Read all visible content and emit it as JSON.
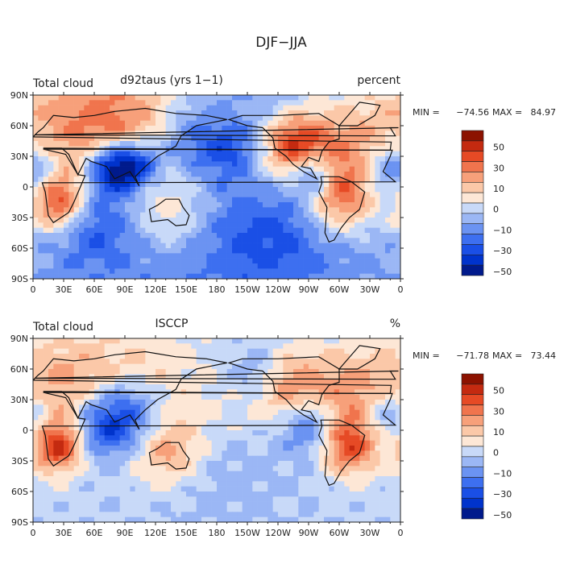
{
  "figure_title": "DJF−JJA",
  "chart_data": [
    {
      "type": "heatmap",
      "id": "top",
      "left_title": "Total cloud",
      "center_title": "d92taus (yrs 1−1)",
      "units": "percent",
      "stats": {
        "min_label": "MIN = ",
        "min": "−74.56",
        "max_label": "MAX = ",
        "max": "84.97"
      },
      "xlabel": "",
      "ylabel": "",
      "x_ticks": [
        "0",
        "30E",
        "60E",
        "90E",
        "120E",
        "150E",
        "180",
        "150W",
        "120W",
        "90W",
        "60W",
        "30W",
        "0"
      ],
      "y_ticks": [
        "90N",
        "60N",
        "30N",
        "0",
        "30S",
        "60S",
        "90S"
      ],
      "xlim": [
        0,
        360
      ],
      "ylim": [
        -90,
        90
      ],
      "colorbar": {
        "labels": [
          "50",
          "30",
          "10",
          "0",
          "−10",
          "−30",
          "−50"
        ]
      },
      "field": [
        {
          "lon": 40,
          "lat": 55,
          "r": 55,
          "v": 35
        },
        {
          "lon": 100,
          "lat": 55,
          "r": 45,
          "v": 35
        },
        {
          "lon": 255,
          "lat": 40,
          "r": 22,
          "v": 55
        },
        {
          "lon": 300,
          "lat": 40,
          "r": 35,
          "v": 35
        },
        {
          "lon": 25,
          "lat": -15,
          "r": 20,
          "v": 60
        },
        {
          "lon": 300,
          "lat": -10,
          "r": 25,
          "v": 50
        },
        {
          "lon": 135,
          "lat": -25,
          "r": 30,
          "v": 25
        },
        {
          "lon": 220,
          "lat": 10,
          "r": 30,
          "v": 15
        },
        {
          "lon": 75,
          "lat": 18,
          "r": 18,
          "v": -55
        },
        {
          "lon": 100,
          "lat": 22,
          "r": 18,
          "v": -55
        },
        {
          "lon": 150,
          "lat": 45,
          "r": 25,
          "v": -25
        },
        {
          "lon": 195,
          "lat": 35,
          "r": 20,
          "v": -25
        },
        {
          "lon": 355,
          "lat": 15,
          "r": 20,
          "v": -40
        },
        {
          "lon": 275,
          "lat": 12,
          "r": 15,
          "v": -45
        },
        {
          "lon": 60,
          "lat": -30,
          "r": 30,
          "v": -30
        },
        {
          "lon": 230,
          "lat": -35,
          "r": 40,
          "v": -20
        },
        {
          "lon": 180,
          "lat": -80,
          "r": 200,
          "v": -30
        }
      ]
    },
    {
      "type": "heatmap",
      "id": "bottom",
      "left_title": "Total cloud",
      "center_title": "ISCCP",
      "units": "%",
      "stats": {
        "min_label": "MIN = ",
        "min": "−71.78",
        "max_label": "MAX = ",
        "max": "73.44"
      },
      "xlabel": "",
      "ylabel": "",
      "x_ticks": [
        "0",
        "30E",
        "60E",
        "90E",
        "120E",
        "150E",
        "180",
        "150W",
        "120W",
        "90W",
        "60W",
        "30W",
        "0"
      ],
      "y_ticks": [
        "90N",
        "60N",
        "30N",
        "0",
        "30S",
        "60S",
        "90S"
      ],
      "xlim": [
        0,
        360
      ],
      "ylim": [
        -90,
        90
      ],
      "colorbar": {
        "labels": [
          "50",
          "30",
          "10",
          "0",
          "−10",
          "−30",
          "−50"
        ]
      },
      "field": [
        {
          "lon": 30,
          "lat": 45,
          "r": 35,
          "v": 25
        },
        {
          "lon": 100,
          "lat": 50,
          "r": 35,
          "v": 20
        },
        {
          "lon": 250,
          "lat": 40,
          "r": 25,
          "v": 35
        },
        {
          "lon": 310,
          "lat": 35,
          "r": 30,
          "v": 30
        },
        {
          "lon": 25,
          "lat": -15,
          "r": 18,
          "v": 60
        },
        {
          "lon": 310,
          "lat": -15,
          "r": 20,
          "v": 50
        },
        {
          "lon": 130,
          "lat": -20,
          "r": 25,
          "v": 35
        },
        {
          "lon": 180,
          "lat": 15,
          "r": 35,
          "v": 15
        },
        {
          "lon": 90,
          "lat": 15,
          "r": 25,
          "v": -50
        },
        {
          "lon": 60,
          "lat": 0,
          "r": 20,
          "v": -25
        },
        {
          "lon": 270,
          "lat": 5,
          "r": 20,
          "v": -35
        },
        {
          "lon": 350,
          "lat": 12,
          "r": 18,
          "v": -30
        },
        {
          "lon": 220,
          "lat": 55,
          "r": 20,
          "v": -20
        },
        {
          "lon": 180,
          "lat": -15,
          "r": 40,
          "v": -12
        },
        {
          "lon": 180,
          "lat": -45,
          "r": 200,
          "v": 15
        },
        {
          "lon": 180,
          "lat": -80,
          "r": 200,
          "v": -25
        }
      ]
    }
  ]
}
